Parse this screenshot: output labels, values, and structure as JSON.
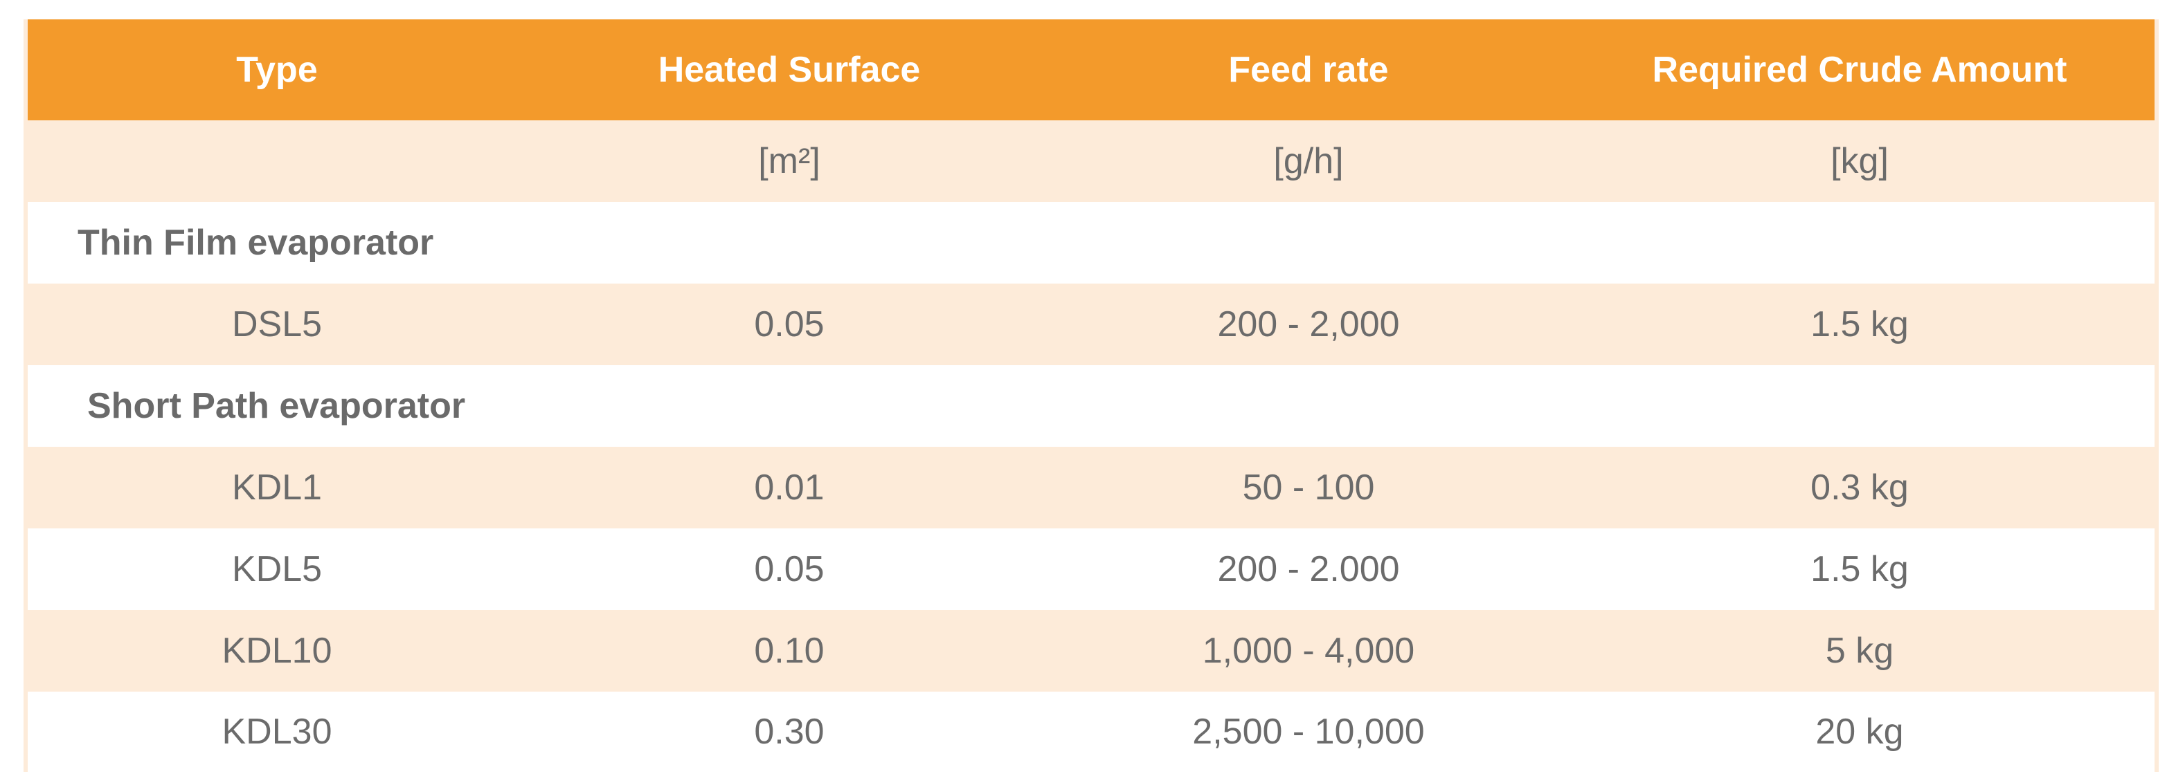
{
  "table": {
    "headers": [
      "Type",
      "Heated Surface",
      "Feed rate",
      "Required Crude Amount"
    ],
    "units": [
      "",
      "[m²]",
      "[g/h]",
      "[kg]"
    ],
    "sections": [
      {
        "title": "Thin Film evaporator",
        "rows": [
          [
            "DSL5",
            "0.05",
            "200 - 2,000",
            "1.5 kg"
          ]
        ]
      },
      {
        "title": "Short Path evaporator",
        "rows": [
          [
            "KDL1",
            "0.01",
            "50 - 100",
            "0.3 kg"
          ],
          [
            "KDL5",
            "0.05",
            "200 - 2.000",
            "1.5 kg"
          ],
          [
            "KDL10",
            "0.10",
            "1,000 - 4,000",
            "5 kg"
          ],
          [
            "KDL30",
            "0.30",
            "2,500 - 10,000",
            "20 kg"
          ]
        ]
      }
    ]
  }
}
